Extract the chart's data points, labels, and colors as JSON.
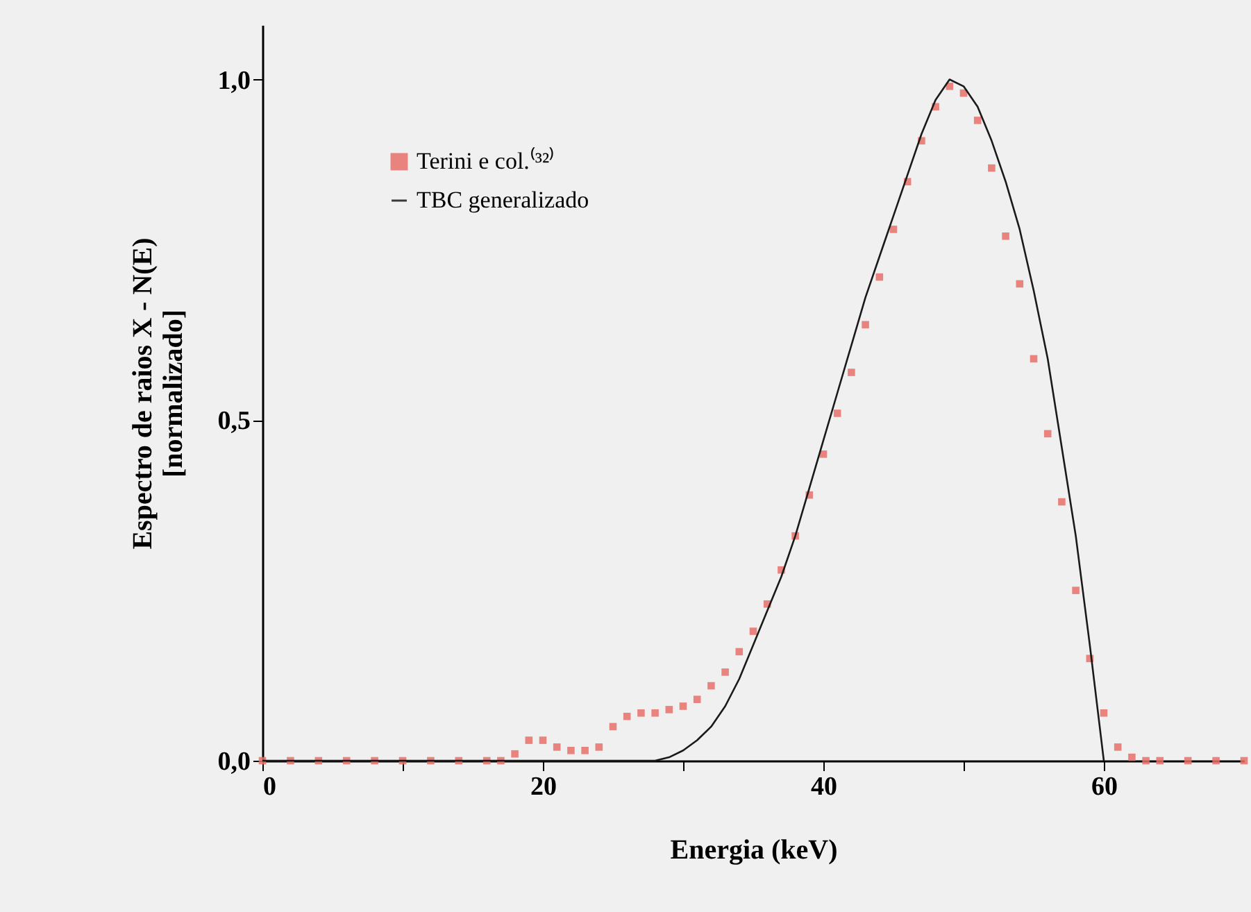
{
  "chart_data": {
    "type": "scatter",
    "xlabel": "Energia (keV)",
    "ylabel": "Espectro de raios X - N(E)\n[normalizado]",
    "xlim": [
      0,
      70
    ],
    "ylim": [
      0,
      1.08
    ],
    "xticks": [
      0,
      {
        "value": 10,
        "label": null
      },
      20,
      {
        "value": 30,
        "label": null
      },
      40,
      {
        "value": 50,
        "label": null
      },
      60
    ],
    "yticks": [
      {
        "value": 0,
        "label": "0,0"
      },
      {
        "value": 0.5,
        "label": "0,5"
      },
      {
        "value": 1,
        "label": "1,0"
      }
    ],
    "grid": false,
    "legend": "top left",
    "marker": "square",
    "series": [
      {
        "name": "Terini e col.⁽³²⁾",
        "color": "#e8706a",
        "x": [
          0,
          2,
          4,
          6,
          8,
          10,
          12,
          14,
          16,
          17,
          18,
          19,
          20,
          21,
          22,
          23,
          24,
          25,
          26,
          27,
          28,
          29,
          30,
          31,
          32,
          33,
          34,
          35,
          36,
          37,
          38,
          39,
          40,
          41,
          42,
          43,
          44,
          45,
          46,
          47,
          48,
          49,
          50,
          51,
          52,
          53,
          54,
          55,
          56,
          57,
          58,
          59,
          60,
          61,
          62,
          63,
          64,
          66,
          68,
          70
        ],
        "values": [
          0,
          0,
          0,
          0,
          0,
          0,
          0,
          0,
          0,
          0,
          0.01,
          0.03,
          0.03,
          0.02,
          0.015,
          0.015,
          0.02,
          0.05,
          0.065,
          0.07,
          0.07,
          0.075,
          0.08,
          0.09,
          0.11,
          0.13,
          0.16,
          0.19,
          0.23,
          0.28,
          0.33,
          0.39,
          0.45,
          0.51,
          0.57,
          0.64,
          0.71,
          0.78,
          0.85,
          0.91,
          0.96,
          0.99,
          0.98,
          0.94,
          0.87,
          0.77,
          0.7,
          0.59,
          0.48,
          0.38,
          0.25,
          0.15,
          0.07,
          0.02,
          0.005,
          0,
          0,
          0,
          0,
          0
        ]
      },
      {
        "name": "TBC generalizado",
        "color": "#1a1a1a",
        "type": "line",
        "marker": "none",
        "x": [
          0,
          10,
          20,
          28,
          29,
          30,
          31,
          32,
          33,
          34,
          35,
          36,
          37,
          38,
          39,
          40,
          41,
          42,
          43,
          44,
          45,
          46,
          47,
          48,
          49,
          50,
          51,
          52,
          53,
          54,
          55,
          56,
          57,
          58,
          59,
          60
        ],
        "values": [
          0,
          0,
          0,
          0,
          0.005,
          0.015,
          0.03,
          0.05,
          0.08,
          0.12,
          0.17,
          0.22,
          0.27,
          0.33,
          0.4,
          0.47,
          0.54,
          0.61,
          0.68,
          0.74,
          0.8,
          0.86,
          0.92,
          0.97,
          1,
          0.99,
          0.96,
          0.91,
          0.85,
          0.78,
          0.69,
          0.59,
          0.46,
          0.33,
          0.17,
          0
        ]
      }
    ]
  }
}
